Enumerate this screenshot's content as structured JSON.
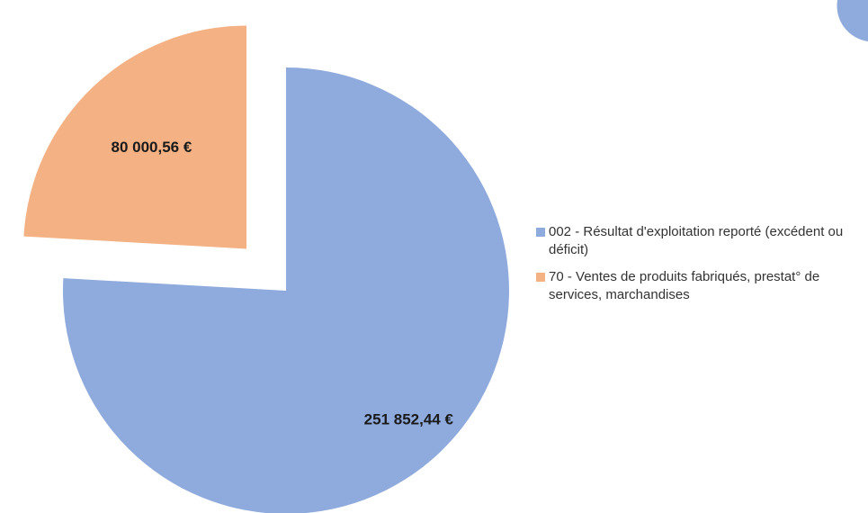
{
  "chart_data": {
    "type": "pie",
    "exploded": true,
    "legend_position": "right",
    "series": [
      {
        "name": "002 - Résultat d'exploitation reporté (excédent ou déficit)",
        "value": 251852.44,
        "label": "251 852,44 €",
        "color": "#8faadc"
      },
      {
        "name": "70 - Ventes de produits fabriqués, prestat° de services, marchandises",
        "value": 80000.56,
        "label": "80 000,56 €",
        "color": "#f4b183"
      }
    ]
  }
}
